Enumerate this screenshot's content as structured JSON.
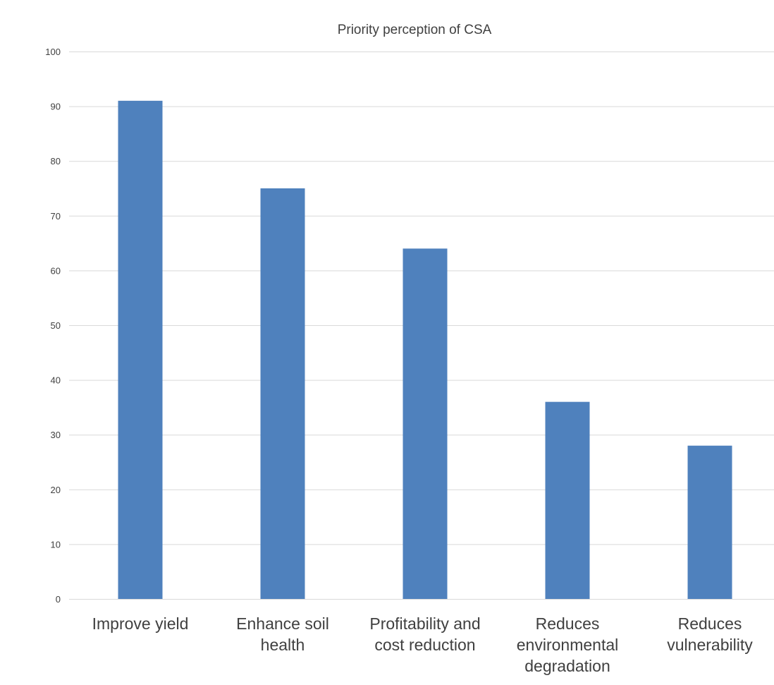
{
  "chart_data": {
    "type": "bar",
    "title": "Priority perception of CSA",
    "xlabel": "",
    "ylabel": "",
    "categories": [
      "Improve yield",
      "Enhance soil health",
      "Profitability and cost reduction",
      "Reduces environmental degradation",
      "Reduces vulnerability"
    ],
    "category_lines": [
      [
        "Improve yield"
      ],
      [
        "Enhance soil",
        "health"
      ],
      [
        "Profitability and",
        "cost reduction"
      ],
      [
        "Reduces",
        "environmental",
        "degradation"
      ],
      [
        "Reduces",
        "vulnerability"
      ]
    ],
    "values": [
      91,
      75,
      64,
      36,
      28
    ],
    "ylim": [
      0,
      100
    ],
    "yticks": [
      0,
      10,
      20,
      30,
      40,
      50,
      60,
      70,
      80,
      90,
      100
    ],
    "grid": true,
    "legend": "none",
    "bar_color": "#4f81bd"
  }
}
